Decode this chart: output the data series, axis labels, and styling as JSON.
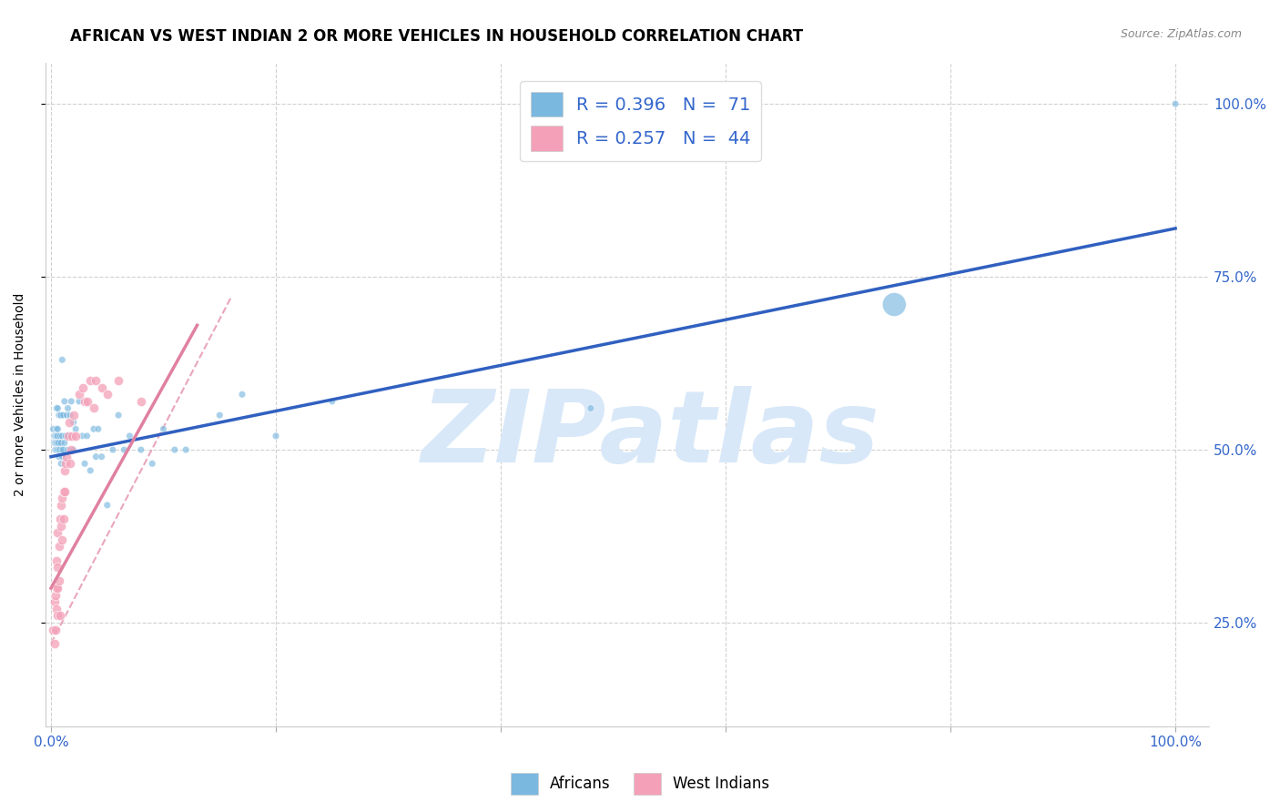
{
  "title": "AFRICAN VS WEST INDIAN 2 OR MORE VEHICLES IN HOUSEHOLD CORRELATION CHART",
  "source": "Source: ZipAtlas.com",
  "ylabel": "2 or more Vehicles in Household",
  "watermark": "ZIPatlas",
  "african_color": "#7ab8e0",
  "west_indian_color": "#f4a0b8",
  "african_trend_color": "#3060c0",
  "west_indian_trend_dashed_color": "#e080a0",
  "background_color": "#ffffff",
  "grid_color": "#cccccc",
  "title_fontsize": 12,
  "axis_label_fontsize": 10,
  "tick_fontsize": 11,
  "legend_fontsize": 14,
  "watermark_color": "#d8e8f8",
  "watermark_fontsize": 80,
  "african_scatter_x": [
    0.002,
    0.003,
    0.003,
    0.004,
    0.004,
    0.004,
    0.004,
    0.005,
    0.005,
    0.005,
    0.005,
    0.005,
    0.006,
    0.006,
    0.006,
    0.006,
    0.006,
    0.007,
    0.007,
    0.007,
    0.007,
    0.008,
    0.008,
    0.008,
    0.009,
    0.009,
    0.009,
    0.01,
    0.01,
    0.01,
    0.01,
    0.011,
    0.011,
    0.012,
    0.012,
    0.013,
    0.014,
    0.015,
    0.015,
    0.016,
    0.017,
    0.018,
    0.02,
    0.02,
    0.022,
    0.025,
    0.028,
    0.03,
    0.032,
    0.035,
    0.038,
    0.04,
    0.042,
    0.045,
    0.05,
    0.055,
    0.06,
    0.065,
    0.07,
    0.08,
    0.09,
    0.1,
    0.11,
    0.12,
    0.15,
    0.17,
    0.2,
    0.25,
    0.48,
    0.75,
    1.0
  ],
  "african_scatter_y": [
    0.53,
    0.51,
    0.52,
    0.5,
    0.5,
    0.51,
    0.52,
    0.5,
    0.51,
    0.52,
    0.53,
    0.56,
    0.5,
    0.51,
    0.52,
    0.53,
    0.56,
    0.49,
    0.5,
    0.51,
    0.55,
    0.5,
    0.52,
    0.55,
    0.48,
    0.51,
    0.55,
    0.49,
    0.5,
    0.52,
    0.63,
    0.5,
    0.55,
    0.51,
    0.57,
    0.52,
    0.55,
    0.5,
    0.56,
    0.52,
    0.55,
    0.57,
    0.5,
    0.54,
    0.53,
    0.57,
    0.52,
    0.48,
    0.52,
    0.47,
    0.53,
    0.49,
    0.53,
    0.49,
    0.42,
    0.5,
    0.55,
    0.5,
    0.52,
    0.5,
    0.48,
    0.53,
    0.5,
    0.5,
    0.55,
    0.58,
    0.52,
    0.57,
    0.56,
    0.71,
    1.0
  ],
  "african_scatter_sizes": [
    30,
    30,
    30,
    30,
    30,
    30,
    30,
    30,
    30,
    30,
    30,
    30,
    30,
    30,
    30,
    30,
    30,
    30,
    30,
    30,
    30,
    30,
    30,
    30,
    30,
    30,
    30,
    30,
    30,
    30,
    30,
    30,
    30,
    30,
    30,
    30,
    30,
    30,
    30,
    30,
    30,
    30,
    30,
    30,
    30,
    30,
    30,
    30,
    30,
    30,
    30,
    30,
    30,
    30,
    30,
    30,
    30,
    30,
    30,
    30,
    30,
    30,
    30,
    30,
    30,
    30,
    30,
    30,
    30,
    350,
    30
  ],
  "west_indian_scatter_x": [
    0.002,
    0.003,
    0.003,
    0.004,
    0.004,
    0.005,
    0.005,
    0.005,
    0.006,
    0.006,
    0.006,
    0.006,
    0.007,
    0.007,
    0.008,
    0.008,
    0.009,
    0.009,
    0.01,
    0.01,
    0.011,
    0.011,
    0.012,
    0.012,
    0.013,
    0.014,
    0.015,
    0.016,
    0.017,
    0.018,
    0.019,
    0.02,
    0.022,
    0.025,
    0.028,
    0.03,
    0.032,
    0.035,
    0.038,
    0.04,
    0.045,
    0.05,
    0.06,
    0.08
  ],
  "west_indian_scatter_y": [
    0.24,
    0.22,
    0.28,
    0.24,
    0.29,
    0.3,
    0.27,
    0.34,
    0.3,
    0.33,
    0.38,
    0.26,
    0.31,
    0.36,
    0.4,
    0.26,
    0.42,
    0.39,
    0.37,
    0.43,
    0.4,
    0.44,
    0.47,
    0.44,
    0.48,
    0.49,
    0.52,
    0.54,
    0.48,
    0.5,
    0.52,
    0.55,
    0.52,
    0.58,
    0.59,
    0.57,
    0.57,
    0.6,
    0.56,
    0.6,
    0.59,
    0.58,
    0.6,
    0.57
  ],
  "african_trend_x": [
    0.0,
    1.0
  ],
  "african_trend_y": [
    0.49,
    0.82
  ],
  "west_indian_trend_x": [
    0.0,
    0.16
  ],
  "west_indian_trend_y": [
    0.22,
    0.72
  ],
  "xlim": [
    -0.005,
    1.03
  ],
  "ylim": [
    0.1,
    1.06
  ]
}
